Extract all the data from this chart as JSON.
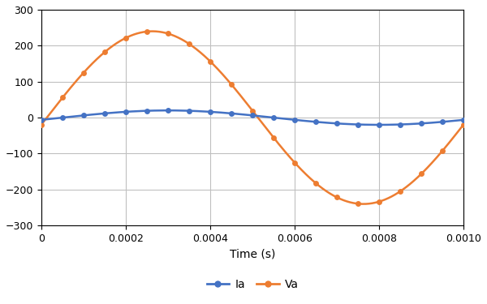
{
  "xlabel": "Time (s)",
  "xlim": [
    0,
    0.001
  ],
  "ylim": [
    -300,
    300
  ],
  "yticks": [
    -300,
    -200,
    -100,
    0,
    100,
    200,
    300
  ],
  "xticks": [
    0,
    0.0002,
    0.0004,
    0.0006,
    0.0008,
    0.001
  ],
  "Ia_color": "#4472C4",
  "Va_color": "#ED7D31",
  "grid_color": "#C0C0C0",
  "bg_color": "#FFFFFF",
  "legend_Ia": "Ia",
  "legend_Va": "Va",
  "n_marker_points": 21,
  "Va_amplitude": 240,
  "Va_freq": 1000,
  "Va_phi": -0.08,
  "Ia_amplitude": 20,
  "Ia_freq": 1000,
  "Ia_phi": 1.47,
  "RC_distort": true
}
